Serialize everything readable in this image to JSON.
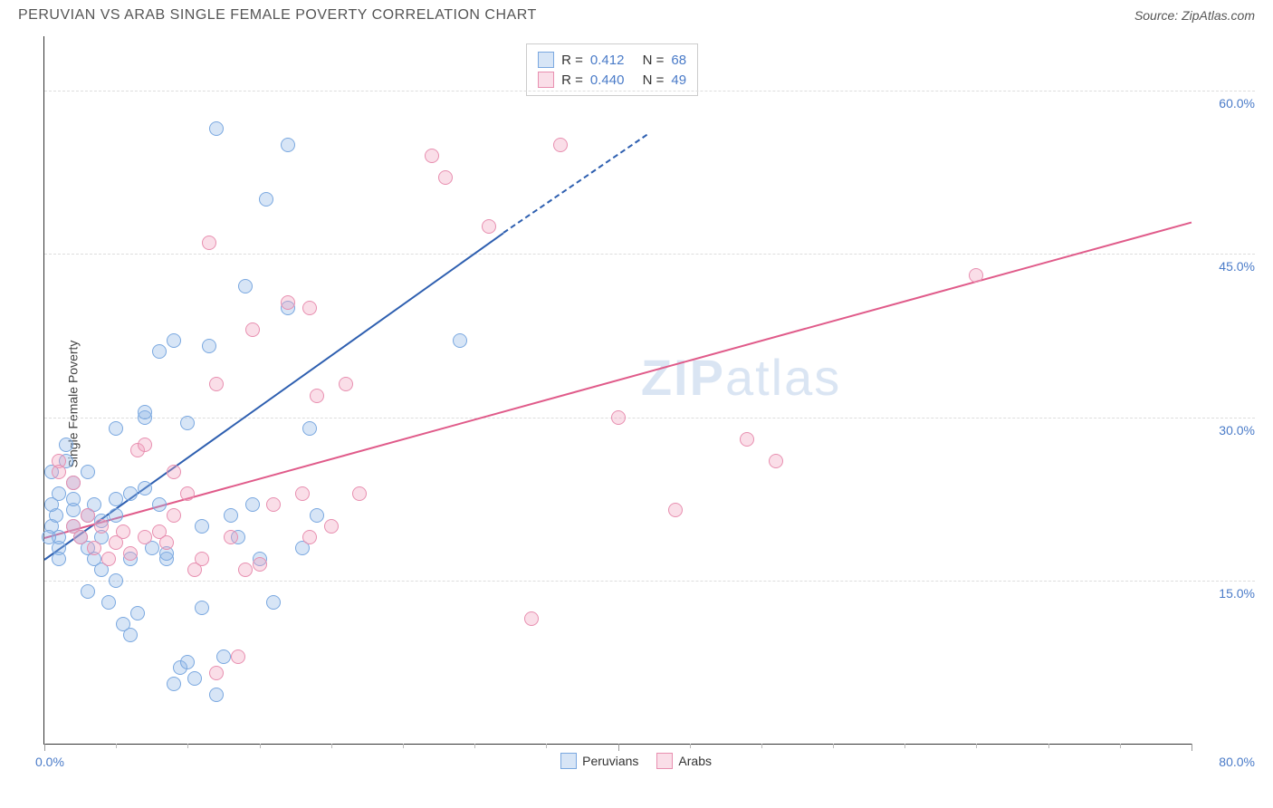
{
  "title": "PERUVIAN VS ARAB SINGLE FEMALE POVERTY CORRELATION CHART",
  "source": "Source: ZipAtlas.com",
  "watermark_zip": "ZIP",
  "watermark_atlas": "atlas",
  "y_axis_title": "Single Female Poverty",
  "x_min_label": "0.0%",
  "x_max_label": "80.0%",
  "chart": {
    "type": "scatter",
    "xlim": [
      0,
      80
    ],
    "ylim": [
      0,
      65
    ],
    "y_ticks": [
      15.0,
      30.0,
      45.0,
      60.0
    ],
    "y_tick_labels": [
      "15.0%",
      "30.0%",
      "45.0%",
      "60.0%"
    ],
    "x_major_ticks": [
      0,
      40,
      80
    ],
    "x_minor_step": 5,
    "grid_color": "#dddddd",
    "axis_color": "#333333",
    "background_color": "#ffffff",
    "tick_label_color": "#4a7bc8",
    "marker_radius": 8,
    "marker_stroke_width": 1.2
  },
  "series": {
    "peruvians": {
      "label": "Peruvians",
      "R_label": "R =",
      "R": "0.412",
      "N_label": "N =",
      "N": "68",
      "fill": "rgba(140,180,230,0.35)",
      "stroke": "#7aa8e0",
      "line_color": "#2e5fb0",
      "trend_start": [
        0,
        17
      ],
      "trend_end_solid": [
        32,
        47
      ],
      "trend_end_dash": [
        42,
        56
      ],
      "points": [
        [
          0.5,
          20
        ],
        [
          0.8,
          21
        ],
        [
          0.5,
          22
        ],
        [
          1,
          23
        ],
        [
          1,
          18
        ],
        [
          1,
          19
        ],
        [
          0.5,
          25
        ],
        [
          2,
          20
        ],
        [
          2,
          21.5
        ],
        [
          2,
          22.5
        ],
        [
          1.5,
          26
        ],
        [
          1.5,
          27.5
        ],
        [
          2.5,
          19
        ],
        [
          3,
          18
        ],
        [
          3,
          14
        ],
        [
          3,
          21
        ],
        [
          3.5,
          22
        ],
        [
          3.5,
          17
        ],
        [
          4,
          16
        ],
        [
          4,
          19
        ],
        [
          4,
          20.5
        ],
        [
          4.5,
          13
        ],
        [
          5,
          21
        ],
        [
          5,
          22.5
        ],
        [
          5,
          29
        ],
        [
          5.5,
          11
        ],
        [
          6,
          10
        ],
        [
          6,
          17
        ],
        [
          6.5,
          12
        ],
        [
          7,
          30
        ],
        [
          7,
          30.5
        ],
        [
          7.5,
          18
        ],
        [
          8,
          36
        ],
        [
          8.5,
          17
        ],
        [
          8.5,
          17.5
        ],
        [
          9,
          37
        ],
        [
          9,
          5.5
        ],
        [
          9.5,
          7
        ],
        [
          10,
          7.5
        ],
        [
          10,
          29.5
        ],
        [
          10.5,
          6
        ],
        [
          11,
          12.5
        ],
        [
          11.5,
          36.5
        ],
        [
          12,
          56.5
        ],
        [
          12,
          4.5
        ],
        [
          12.5,
          8
        ],
        [
          13,
          21
        ],
        [
          13.5,
          19
        ],
        [
          14,
          42
        ],
        [
          14.5,
          22
        ],
        [
          15,
          17
        ],
        [
          15.5,
          50
        ],
        [
          16,
          13
        ],
        [
          17,
          40
        ],
        [
          17,
          55
        ],
        [
          18,
          18
        ],
        [
          18.5,
          29
        ],
        [
          19,
          21
        ],
        [
          6,
          23
        ],
        [
          7,
          23.5
        ],
        [
          8,
          22
        ],
        [
          2,
          24
        ],
        [
          1,
          17
        ],
        [
          0.3,
          19
        ],
        [
          3,
          25
        ],
        [
          5,
          15
        ],
        [
          11,
          20
        ],
        [
          29,
          37
        ]
      ]
    },
    "arabs": {
      "label": "Arabs",
      "R_label": "R =",
      "R": "0.440",
      "N_label": "N =",
      "N": "49",
      "fill": "rgba(240,160,190,0.35)",
      "stroke": "#e88fb0",
      "line_color": "#e05b8a",
      "trend_start": [
        0,
        19
      ],
      "trend_end_solid": [
        80,
        48
      ],
      "points": [
        [
          1,
          26
        ],
        [
          1,
          25
        ],
        [
          2,
          24
        ],
        [
          2,
          20
        ],
        [
          2.5,
          19
        ],
        [
          3,
          21
        ],
        [
          3.5,
          18
        ],
        [
          4,
          20
        ],
        [
          4.5,
          17
        ],
        [
          5,
          18.5
        ],
        [
          5.5,
          19.5
        ],
        [
          6,
          17.5
        ],
        [
          6.5,
          27
        ],
        [
          7,
          19
        ],
        [
          8,
          19.5
        ],
        [
          8.5,
          18.5
        ],
        [
          9,
          21
        ],
        [
          10,
          23
        ],
        [
          10.5,
          16
        ],
        [
          11,
          17
        ],
        [
          11.5,
          46
        ],
        [
          12,
          33
        ],
        [
          13,
          19
        ],
        [
          13.5,
          8
        ],
        [
          14,
          16
        ],
        [
          14.5,
          38
        ],
        [
          15,
          16.5
        ],
        [
          16,
          22
        ],
        [
          17,
          40.5
        ],
        [
          18,
          23
        ],
        [
          18.5,
          19
        ],
        [
          19,
          32
        ],
        [
          18.5,
          40
        ],
        [
          20,
          20
        ],
        [
          21,
          33
        ],
        [
          22,
          23
        ],
        [
          27,
          54
        ],
        [
          28,
          52
        ],
        [
          31,
          47.5
        ],
        [
          34,
          11.5
        ],
        [
          36,
          55
        ],
        [
          40,
          30
        ],
        [
          44,
          21.5
        ],
        [
          49,
          28
        ],
        [
          51,
          26
        ],
        [
          65,
          43
        ],
        [
          7,
          27.5
        ],
        [
          9,
          25
        ],
        [
          12,
          6.5
        ]
      ]
    }
  }
}
